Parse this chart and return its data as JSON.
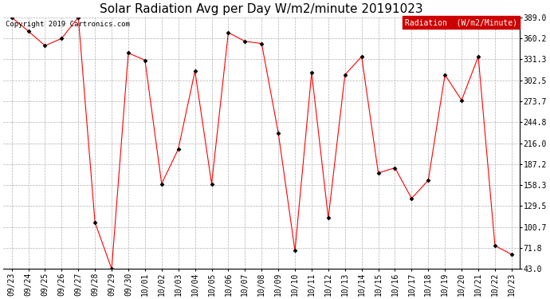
{
  "title": "Solar Radiation Avg per Day W/m2/minute 20191023",
  "copyright": "Copyright 2019 Cartronics.com",
  "legend_label": "Radiation  (W/m2/Minute)",
  "dates": [
    "09/23",
    "09/24",
    "09/25",
    "09/26",
    "09/27",
    "09/28",
    "09/29",
    "09/30",
    "10/01",
    "10/02",
    "10/03",
    "10/04",
    "10/05",
    "10/06",
    "10/07",
    "10/08",
    "10/09",
    "10/10",
    "10/11",
    "10/12",
    "10/13",
    "10/14",
    "10/15",
    "10/16",
    "10/17",
    "10/18",
    "10/19",
    "10/20",
    "10/21",
    "10/22",
    "10/23"
  ],
  "values": [
    389.0,
    370.0,
    350.0,
    360.0,
    389.0,
    107.0,
    43.0,
    340.0,
    330.0,
    160.0,
    208.0,
    315.0,
    160.0,
    368.0,
    356.0,
    353.0,
    230.0,
    68.0,
    313.0,
    113.0,
    310.0,
    335.0,
    175.0,
    182.0,
    140.0,
    165.0,
    310.0,
    275.0,
    335.0,
    75.0,
    63.0
  ],
  "line_color": "red",
  "marker": "D",
  "marker_size": 2.5,
  "marker_color": "#000000",
  "background_color": "#ffffff",
  "plot_bg_color": "#ffffff",
  "grid_color": "#b0b0b0",
  "ylim": [
    43.0,
    389.0
  ],
  "yticks": [
    43.0,
    71.8,
    100.7,
    129.5,
    158.3,
    187.2,
    216.0,
    244.8,
    273.7,
    302.5,
    331.3,
    360.2,
    389.0
  ],
  "legend_bg": "#cc0000",
  "legend_text_color": "#ffffff",
  "title_fontsize": 11,
  "axis_fontsize": 7,
  "copyright_fontsize": 6.5
}
